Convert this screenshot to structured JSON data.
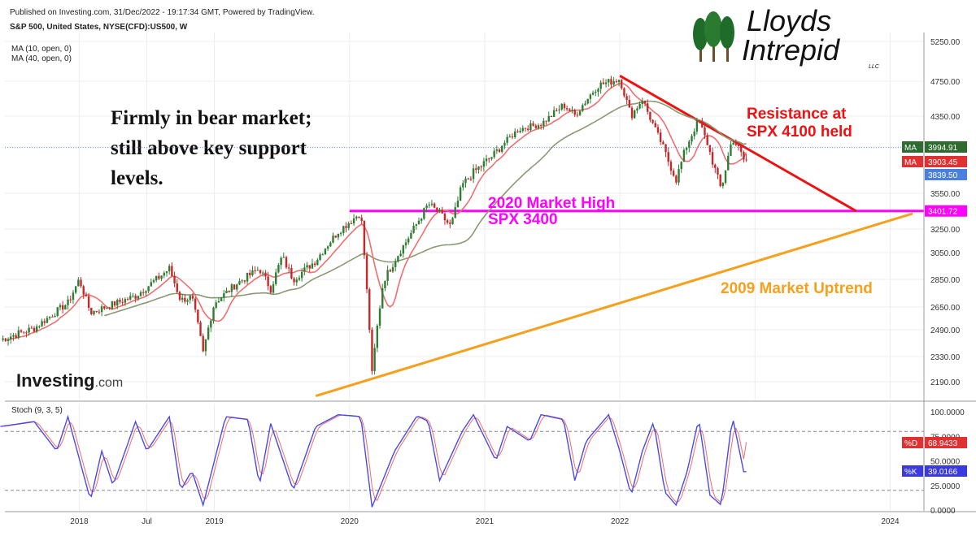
{
  "header": {
    "published": "Published on Investing.com, 31/Dec/2022 - 19:17:34 GMT, Powered by TradingView.",
    "symbol": "S&P 500, United States, NYSE(CFD):US500, W",
    "ma10_legend": "MA (10, open, 0)",
    "ma40_legend": "MA (40, open, 0)",
    "stoch_legend": "Stoch (9, 3, 5)"
  },
  "logo": {
    "line1": "Lloyds",
    "line2": "Intrepid",
    "suffix": "LLC"
  },
  "watermark": {
    "brand": "Investing",
    "suffix": ".com"
  },
  "annotations": {
    "bear_note": [
      "Firmly in bear market;",
      "still above key support",
      "levels."
    ],
    "resistance": [
      "Resistance at",
      "SPX 4100 held"
    ],
    "market_high": [
      "2020 Market High",
      "SPX 3400"
    ],
    "uptrend": "2009 Market Uptrend"
  },
  "colors": {
    "up_candle": "#2e7d32",
    "down_candle": "#c62828",
    "ma10": "#ef6f6f",
    "ma40": "#8a9a72",
    "resistance_line": "#ee1111",
    "support_line": "#ff00ff",
    "uptrend_line": "#f5a11d",
    "stoch_k": "#4a4ae6",
    "stoch_d": "#f06b6b"
  },
  "price_labels": [
    {
      "tag": "MA",
      "value": "3994.91",
      "bg": "#2e6b2e"
    },
    {
      "tag": "MA",
      "value": "3903.45",
      "bg": "#e03030"
    },
    {
      "tag": "",
      "value": "3839.50",
      "bg": "#4a7fe0"
    },
    {
      "tag": "",
      "value": "3401.72",
      "bg": "#ff00ff"
    }
  ],
  "stoch_labels": [
    {
      "tag": "%D",
      "value": "68.9433",
      "bg": "#e03030"
    },
    {
      "tag": "%K",
      "value": "39.0166",
      "bg": "#3a3ae0"
    }
  ],
  "chart_data": {
    "type": "candlestick",
    "timeframe": "weekly",
    "y_ticks": [
      "5250.00",
      "4750.00",
      "4350.00",
      "3950.00",
      "3550.00",
      "3250.00",
      "3050.00",
      "2850.00",
      "2650.00",
      "2490.00",
      "2330.00",
      "2190.00"
    ],
    "x_ticks": [
      "2018",
      "Jul",
      "2019",
      "2020",
      "2021",
      "2022",
      "2024"
    ],
    "stoch_ticks": [
      "100.0000",
      "75.0000",
      "50.0000",
      "25.0000",
      "0.0000"
    ],
    "price_path": [
      [
        "2017-06",
        2430
      ],
      [
        "2017-09",
        2500
      ],
      [
        "2017-12",
        2680
      ],
      [
        "2018-01",
        2850
      ],
      [
        "2018-02",
        2610
      ],
      [
        "2018-04",
        2670
      ],
      [
        "2018-06",
        2730
      ],
      [
        "2018-08",
        2860
      ],
      [
        "2018-09",
        2930
      ],
      [
        "2018-10",
        2700
      ],
      [
        "2018-11",
        2720
      ],
      [
        "2018-12",
        2350
      ],
      [
        "2019-01",
        2680
      ],
      [
        "2019-03",
        2820
      ],
      [
        "2019-05",
        2930
      ],
      [
        "2019-06",
        2780
      ],
      [
        "2019-07",
        3020
      ],
      [
        "2019-08",
        2850
      ],
      [
        "2019-10",
        2990
      ],
      [
        "2019-12",
        3230
      ],
      [
        "2020-02",
        3390
      ],
      [
        "2020-03",
        2230
      ],
      [
        "2020-04",
        2840
      ],
      [
        "2020-06",
        3140
      ],
      [
        "2020-08",
        3460
      ],
      [
        "2020-09",
        3380
      ],
      [
        "2020-10",
        3270
      ],
      [
        "2020-11",
        3620
      ],
      [
        "2020-12",
        3730
      ],
      [
        "2021-02",
        3900
      ],
      [
        "2021-04",
        4180
      ],
      [
        "2021-06",
        4250
      ],
      [
        "2021-08",
        4480
      ],
      [
        "2021-09",
        4360
      ],
      [
        "2021-11",
        4700
      ],
      [
        "2022-01",
        4780
      ],
      [
        "2022-02",
        4350
      ],
      [
        "2022-03",
        4550
      ],
      [
        "2022-05",
        3900
      ],
      [
        "2022-06",
        3670
      ],
      [
        "2022-08",
        4300
      ],
      [
        "2022-09",
        3900
      ],
      [
        "2022-10",
        3580
      ],
      [
        "2022-11",
        4050
      ],
      [
        "2022-12",
        3840
      ]
    ],
    "ma10_last": 3903.45,
    "ma40_last": 3994.91,
    "last_close": 3839.5,
    "support_level": 3401.72,
    "resistance_line": {
      "from": [
        "2022-01",
        4818
      ],
      "to": [
        "2023-10",
        3400
      ]
    },
    "uptrend_line": {
      "from": [
        "2019-10",
        2110
      ],
      "to": [
        "2024-03",
        3380
      ]
    },
    "stoch_path_k": [
      [
        "2017-06",
        85
      ],
      [
        "2017-09",
        90
      ],
      [
        "2017-11",
        60
      ],
      [
        "2017-12",
        95
      ],
      [
        "2018-02",
        10
      ],
      [
        "2018-03",
        60
      ],
      [
        "2018-04",
        25
      ],
      [
        "2018-06",
        90
      ],
      [
        "2018-07",
        60
      ],
      [
        "2018-09",
        95
      ],
      [
        "2018-10",
        20
      ],
      [
        "2018-11",
        40
      ],
      [
        "2018-12",
        5
      ],
      [
        "2019-02",
        95
      ],
      [
        "2019-04",
        92
      ],
      [
        "2019-05",
        25
      ],
      [
        "2019-06",
        88
      ],
      [
        "2019-08",
        20
      ],
      [
        "2019-10",
        85
      ],
      [
        "2019-12",
        97
      ],
      [
        "2020-02",
        95
      ],
      [
        "2020-03",
        3
      ],
      [
        "2020-05",
        60
      ],
      [
        "2020-07",
        96
      ],
      [
        "2020-08",
        90
      ],
      [
        "2020-09",
        30
      ],
      [
        "2020-10",
        55
      ],
      [
        "2020-11",
        80
      ],
      [
        "2020-12",
        97
      ],
      [
        "2021-02",
        50
      ],
      [
        "2021-03",
        85
      ],
      [
        "2021-05",
        70
      ],
      [
        "2021-06",
        97
      ],
      [
        "2021-08",
        92
      ],
      [
        "2021-09",
        30
      ],
      [
        "2021-10",
        70
      ],
      [
        "2021-12",
        97
      ],
      [
        "2022-01",
        60
      ],
      [
        "2022-02",
        15
      ],
      [
        "2022-03",
        60
      ],
      [
        "2022-04",
        90
      ],
      [
        "2022-05",
        18
      ],
      [
        "2022-06",
        5
      ],
      [
        "2022-07",
        40
      ],
      [
        "2022-08",
        93
      ],
      [
        "2022-09",
        15
      ],
      [
        "2022-10",
        5
      ],
      [
        "2022-11",
        95
      ],
      [
        "2022-12",
        39
      ]
    ],
    "stoch_last_k": 39.0166,
    "stoch_last_d": 68.9433,
    "stoch_bands": [
      80,
      20
    ],
    "grid": true
  }
}
